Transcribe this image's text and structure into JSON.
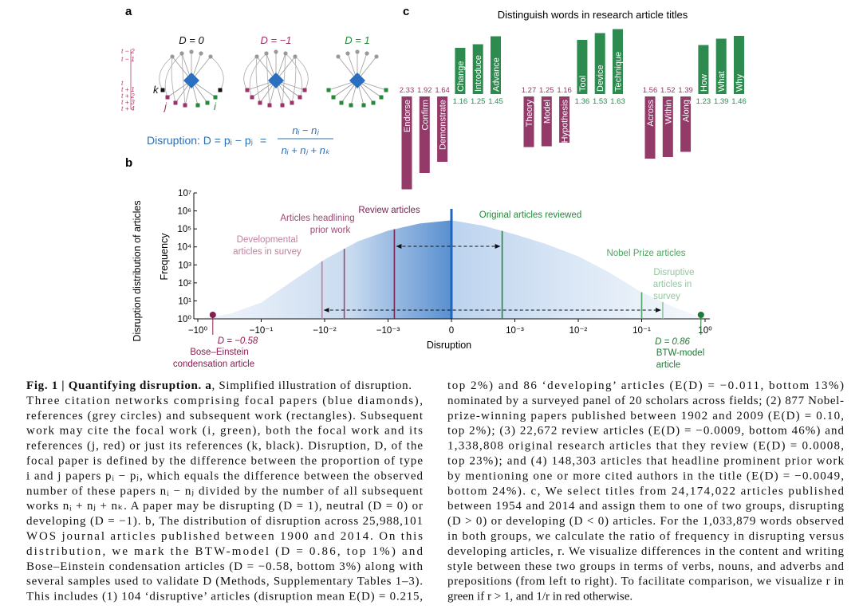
{
  "panel_letters": [
    "a",
    "b",
    "c"
  ],
  "panel_a": {
    "networks": [
      {
        "label": "D = 0"
      },
      {
        "label": "D = −1"
      },
      {
        "label": "D = 1"
      }
    ],
    "time_labels": [
      "t − 2",
      "t − 1",
      "t",
      "t + 1",
      "t + 2",
      "t + 3",
      "t + 4"
    ],
    "node_labels": [
      "k",
      "j",
      "i"
    ],
    "equation": {
      "lhs": "Disruption: D = pᵢ − pⱼ",
      "eq": "=",
      "numerator": "nᵢ − nⱼ",
      "denominator": "nᵢ + nⱼ + nₖ"
    }
  },
  "chart_data": [
    {
      "type": "area",
      "side_label": "Disruption distribution of articles",
      "x_label": "Disruption",
      "y_label": "Frequency",
      "xscale": "symlog",
      "linthresh": 0.001,
      "yscale": "log",
      "xlim": [
        -1,
        1
      ],
      "ylim": [
        1,
        10000000
      ],
      "xticks": [
        {
          "value": -1,
          "label": "−10⁰"
        },
        {
          "value": -0.1,
          "label": "−10⁻¹"
        },
        {
          "value": -0.01,
          "label": "−10⁻²"
        },
        {
          "value": -0.001,
          "label": "−10⁻³"
        },
        0,
        {
          "value": 0.001,
          "label": "10⁻³"
        },
        {
          "value": 0.01,
          "label": "10⁻²"
        },
        {
          "value": 0.1,
          "label": "10⁻¹"
        },
        {
          "value": 1,
          "label": "10⁰"
        }
      ],
      "yticks": [
        {
          "value": 1,
          "label": "10⁰"
        },
        {
          "value": 10,
          "label": "10¹"
        },
        {
          "value": 100,
          "label": "10²"
        },
        {
          "value": 1000,
          "label": "10³"
        },
        {
          "value": 10000,
          "label": "10⁴"
        },
        {
          "value": 100000,
          "label": "10⁵"
        },
        {
          "value": 1000000,
          "label": "10⁶"
        },
        {
          "value": 10000000,
          "label": "10⁷"
        }
      ],
      "x": [
        -1,
        -0.3,
        -0.1,
        -0.03,
        -0.01,
        -0.003,
        -0.001,
        -0.0005,
        0,
        0.0005,
        0.001,
        0.003,
        0.01,
        0.03,
        0.1,
        0.3,
        1
      ],
      "values": [
        1,
        2,
        8,
        150,
        2000,
        20000,
        80000,
        200000,
        300000,
        150000,
        50000,
        15000,
        3000,
        400,
        30,
        5,
        1
      ],
      "color": "#3f7fc8",
      "peak": {
        "x": 0,
        "value": 1300000,
        "color": "#2266bb"
      },
      "markers": [
        {
          "x": -0.011,
          "lines": [
            "Developmental",
            "articles in survey"
          ],
          "color": "#c27f9e"
        },
        {
          "x": -0.0049,
          "lines": [
            "Articles headlining",
            "prior work"
          ],
          "color": "#9a4a72"
        },
        {
          "x": -0.0009,
          "lines": [
            "Review articles"
          ],
          "color": "#7d2254"
        },
        {
          "x": 0.0008,
          "lines": [
            "Original articles reviewed"
          ],
          "color": "#238a3a"
        },
        {
          "x": 0.1,
          "lines": [
            "Nobel Prize articles"
          ],
          "color": "#4fa463"
        },
        {
          "x": 0.215,
          "lines": [
            "Disruptive",
            "articles in",
            "survey"
          ],
          "color": "#93c79e"
        }
      ],
      "points": [
        {
          "x": -0.58,
          "lines": [
            "D = −0.58",
            "Bose–Einstein",
            "condensation article"
          ],
          "color": "#8a1d4f"
        },
        {
          "x": 0.86,
          "lines": [
            "D = 0.86",
            "BTW-model",
            "article"
          ],
          "color": "#1f7a35"
        }
      ]
    },
    {
      "type": "bar",
      "title": "Distinguish words in research article titles",
      "categories": [
        "Endorse",
        "Confirm",
        "Demonstrate",
        "Change",
        "Introduce",
        "Advance",
        "Theory",
        "Model",
        "Hypothesis",
        "Tool",
        "Device",
        "Technique",
        "Across",
        "Within",
        "Along",
        "How",
        "What",
        "Why"
      ],
      "values": [
        2.33,
        1.92,
        1.64,
        1.16,
        1.25,
        1.45,
        1.27,
        1.25,
        1.16,
        1.36,
        1.53,
        1.63,
        1.56,
        1.52,
        1.39,
        1.23,
        1.39,
        1.46
      ],
      "colors": [
        "#933a69",
        "#933a69",
        "#933a69",
        "#2e8b4f",
        "#2e8b4f",
        "#2e8b4f",
        "#933a69",
        "#933a69",
        "#933a69",
        "#2e8b4f",
        "#2e8b4f",
        "#2e8b4f",
        "#933a69",
        "#933a69",
        "#933a69",
        "#2e8b4f",
        "#2e8b4f",
        "#2e8b4f"
      ]
    }
  ],
  "caption": {
    "title": "Fig. 1 | Quantifying disruption. a",
    "left_lines": [
      ", Simplified illustration of disruption.",
      "Three citation networks comprising focal papers (blue diamonds),",
      "references (grey circles) and subsequent work (rectangles). Subsequent",
      "work may cite the focal work (i, green), both the focal work and its",
      "references (j, red) or just its references (k, black). Disruption, D, of the",
      "focal paper is defined by the difference between the proportion of type",
      "i and j papers pᵢ − pⱼ, which equals the difference between the observed",
      "number of these papers nᵢ − nⱼ divided by the number of all subsequent",
      "works nᵢ + nⱼ + nₖ. A paper may be disrupting (D = 1), neutral (D = 0) or",
      "developing (D = −1). b, The distribution of disruption across 25,988,101",
      "WOS journal articles published between 1900 and 2014. On this",
      "distribution, we mark the BTW-model (D = 0.86, top 1%) and",
      "Bose–Einstein condensation articles (D = −0.58, bottom 3%) along with",
      "several samples used to validate D (Methods, Supplementary Tables 1–3).",
      "This includes (1) 104 ‘disruptive’ articles (disruption mean E(D) = 0.215,"
    ],
    "right_lines": [
      "top 2%) and 86 ‘developing’ articles (E(D) = −0.011, bottom 13%)",
      "nominated by a surveyed panel of 20 scholars across fields; (2) 877 Nobel-",
      "prize-winning papers published between 1902 and 2009 (E(D) = 0.10,",
      "top 2%); (3) 22,672 review articles (E(D) = −0.0009, bottom 46%) and",
      "1,338,808 original research articles that they review (E(D) = 0.0008,",
      "top 23%); and (4) 148,303 articles that headline prominent prior work",
      "by mentioning one or more cited authors in the title (E(D) = −0.0049,",
      "bottom 24%). c, We select titles from 24,174,022 articles published",
      "between 1954 and 2014 and assign them to one of two groups, disrupting",
      "(D > 0) or developing (D < 0) articles. For the 1,033,879 words observed",
      "in both groups, we calculate the ratio of frequency in disrupting versus",
      "developing articles, r. We visualize differences in the content and writing",
      "style between these two groups in terms of verbs, nouns, and adverbs and",
      "prepositions (from left to right). To facilitate comparison, we visualize r in",
      "green if r > 1, and 1/r in red otherwise."
    ]
  }
}
